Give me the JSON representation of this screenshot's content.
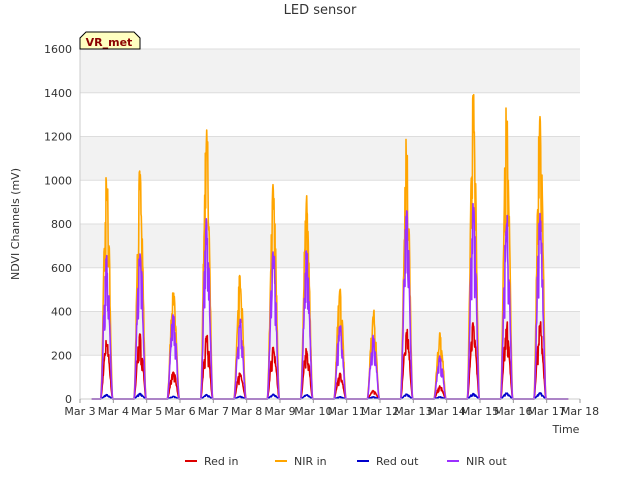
{
  "chart_data": {
    "type": "line",
    "title": "LED sensor",
    "xlabel": "Time",
    "ylabel": "NDVI Channels (mV)",
    "ylim": [
      0,
      1600
    ],
    "yticks": [
      0,
      200,
      400,
      600,
      800,
      1000,
      1200,
      1400,
      1600
    ],
    "xlim": [
      0,
      15
    ],
    "xticks": [
      "Mar 3",
      "Mar 4",
      "Mar 5",
      "Mar 6",
      "Mar 7",
      "Mar 8",
      "Mar 9",
      "Mar 10",
      "Mar 11",
      "Mar 12",
      "Mar 13",
      "Mar 14",
      "Mar 15",
      "Mar 16",
      "Mar 17",
      "Mar 18"
    ],
    "badge": "VR_met",
    "grid": true,
    "legend_position": "bottom-center",
    "data_start_day": 0.35,
    "data_end_day": 14.65,
    "series": [
      {
        "name": "Red in",
        "color": "#dd0000",
        "daily_peaks": [
          270,
          300,
          130,
          300,
          120,
          250,
          240,
          120,
          40,
          320,
          60,
          350,
          355,
          360
        ]
      },
      {
        "name": "NIR in",
        "color": "#ffa500",
        "daily_peaks": [
          1065,
          1065,
          505,
          1255,
          570,
          985,
          930,
          510,
          410,
          1205,
          310,
          1405,
          1355,
          1345
        ]
      },
      {
        "name": "Red out",
        "color": "#0000cc",
        "daily_peaks": [
          20,
          25,
          12,
          20,
          12,
          22,
          20,
          10,
          10,
          22,
          10,
          25,
          28,
          28
        ]
      },
      {
        "name": "NIR out",
        "color": "#9b30ff",
        "daily_peaks": [
          670,
          710,
          400,
          830,
          370,
          690,
          680,
          350,
          300,
          860,
          200,
          895,
          840,
          855
        ]
      }
    ]
  }
}
